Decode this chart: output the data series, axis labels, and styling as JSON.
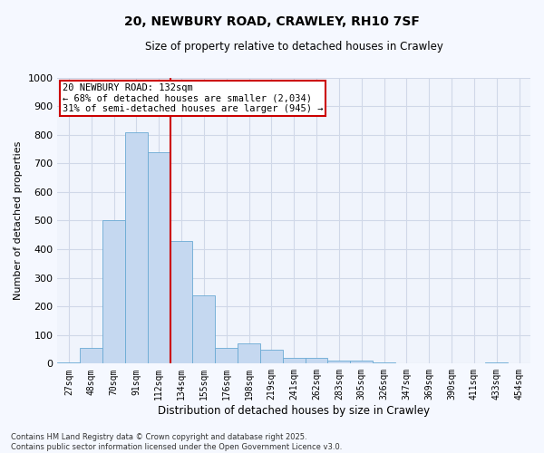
{
  "title": "20, NEWBURY ROAD, CRAWLEY, RH10 7SF",
  "subtitle": "Size of property relative to detached houses in Crawley",
  "xlabel": "Distribution of detached houses by size in Crawley",
  "ylabel": "Number of detached properties",
  "bins": [
    "27sqm",
    "48sqm",
    "70sqm",
    "91sqm",
    "112sqm",
    "134sqm",
    "155sqm",
    "176sqm",
    "198sqm",
    "219sqm",
    "241sqm",
    "262sqm",
    "283sqm",
    "305sqm",
    "326sqm",
    "347sqm",
    "369sqm",
    "390sqm",
    "411sqm",
    "433sqm",
    "454sqm"
  ],
  "values": [
    5,
    55,
    500,
    810,
    740,
    430,
    240,
    55,
    70,
    50,
    20,
    20,
    10,
    10,
    5,
    0,
    0,
    0,
    0,
    5,
    0
  ],
  "bar_color": "#c5d8f0",
  "bar_edge_color": "#6aaad4",
  "vline_color": "#cc0000",
  "vline_bin": 5,
  "ylim": [
    0,
    1000
  ],
  "yticks": [
    0,
    100,
    200,
    300,
    400,
    500,
    600,
    700,
    800,
    900,
    1000
  ],
  "annotation_text": "20 NEWBURY ROAD: 132sqm\n← 68% of detached houses are smaller (2,034)\n31% of semi-detached houses are larger (945) →",
  "annotation_box_color": "#cc0000",
  "footer_line1": "Contains HM Land Registry data © Crown copyright and database right 2025.",
  "footer_line2": "Contains public sector information licensed under the Open Government Licence v3.0.",
  "fig_bg_color": "#f5f8ff",
  "plot_bg_color": "#f0f4fc",
  "grid_color": "#d0d8e8"
}
